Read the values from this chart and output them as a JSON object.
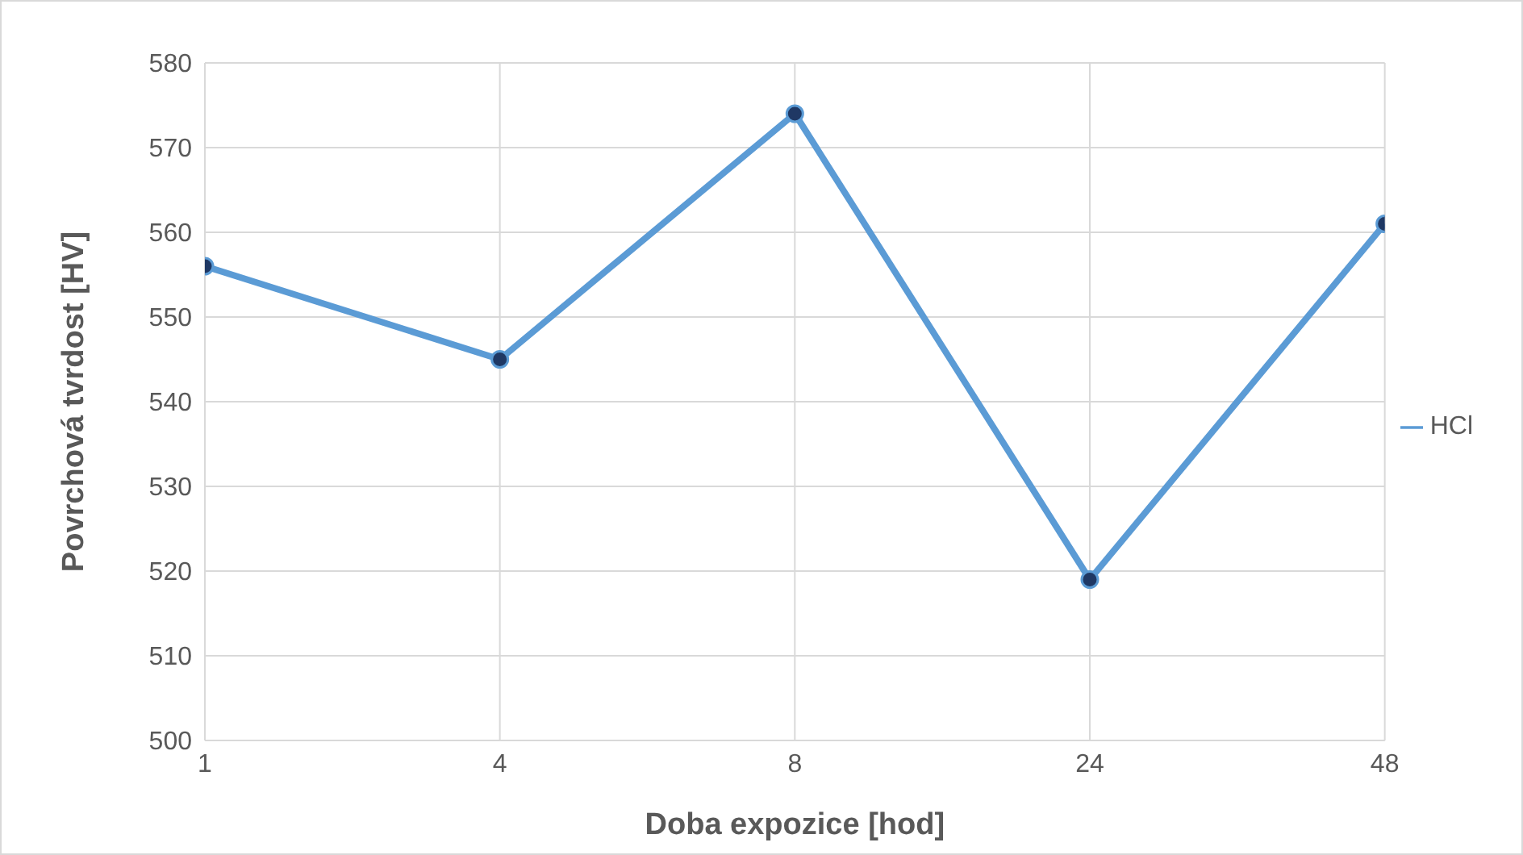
{
  "chart_data": {
    "type": "line",
    "xlabel": "Doba expozice [hod]",
    "ylabel": "Povrchová tvrdost [HV]",
    "categories": [
      "1",
      "4",
      "8",
      "24",
      "48"
    ],
    "series": [
      {
        "name": "HCl",
        "color": "#5b9bd5",
        "values": [
          556,
          545,
          574,
          519,
          561
        ]
      }
    ],
    "ylim": [
      500,
      580
    ],
    "yticks": [
      500,
      510,
      520,
      530,
      540,
      550,
      560,
      570,
      580
    ],
    "grid": true,
    "legend": "right",
    "marker": "circle",
    "line_style": "solid"
  }
}
